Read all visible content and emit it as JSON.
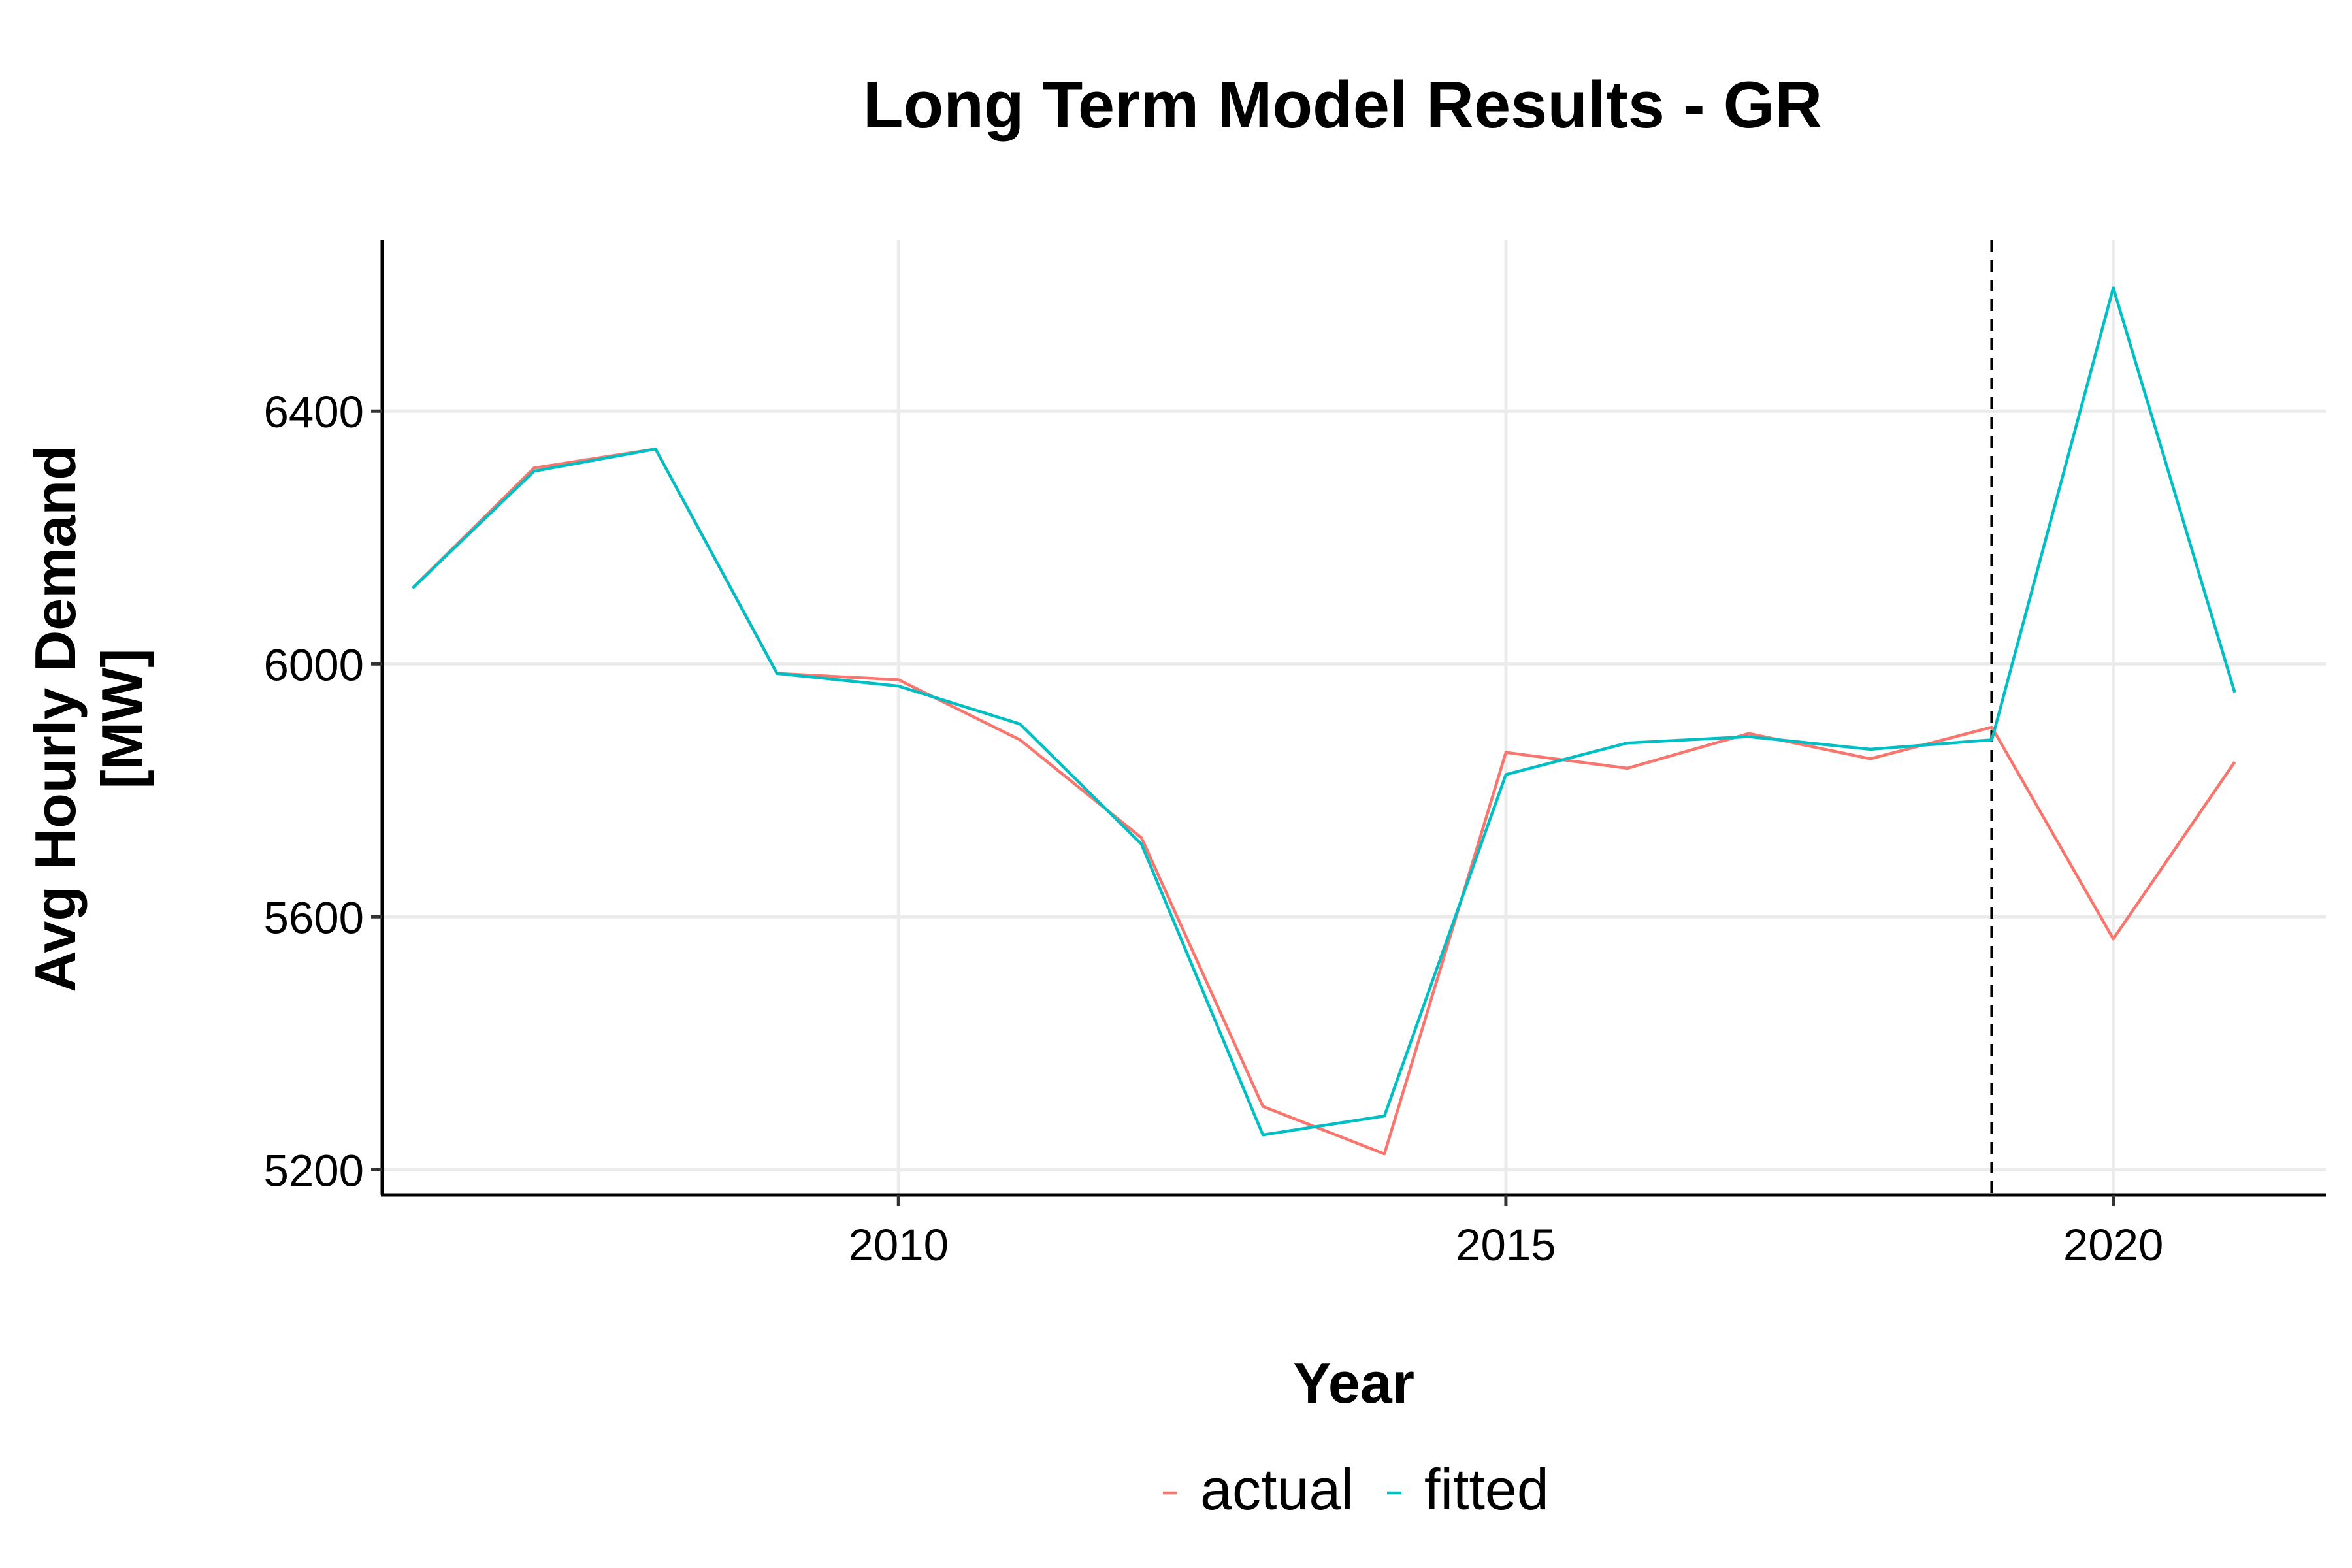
{
  "chart_data": {
    "type": "line",
    "title": "Long Term Model Results - GR",
    "xlabel": "Year",
    "ylabel_lines": [
      "Avg Hourly Demand",
      "[MW]"
    ],
    "x": [
      2006,
      2007,
      2008,
      2009,
      2010,
      2011,
      2012,
      2013,
      2014,
      2015,
      2016,
      2017,
      2018,
      2019,
      2020,
      2021
    ],
    "xlim": [
      2005.75,
      2021.75
    ],
    "ylim": [
      5160,
      6670
    ],
    "x_ticks": [
      2010,
      2015,
      2020
    ],
    "x_tick_labels": [
      "2010",
      "2015",
      "2020"
    ],
    "y_ticks": [
      5200,
      5600,
      6000,
      6400
    ],
    "y_tick_labels": [
      "5200",
      "5600",
      "6000",
      "6400"
    ],
    "grid": "major, both axes",
    "legend_position": "bottom",
    "vline": {
      "x": 2019,
      "style": "dashed"
    },
    "series": [
      {
        "name": "actual",
        "color": "#F8766D",
        "values": [
          6120,
          6310,
          6340,
          5985,
          5975,
          5880,
          5725,
          5300,
          5225,
          5860,
          5835,
          5890,
          5850,
          5900,
          5565,
          5845
        ]
      },
      {
        "name": "fitted",
        "color": "#00BFC4",
        "values": [
          6120,
          6305,
          6340,
          5985,
          5965,
          5905,
          5715,
          5255,
          5285,
          5825,
          5875,
          5885,
          5865,
          5880,
          6595,
          5955
        ]
      }
    ]
  }
}
